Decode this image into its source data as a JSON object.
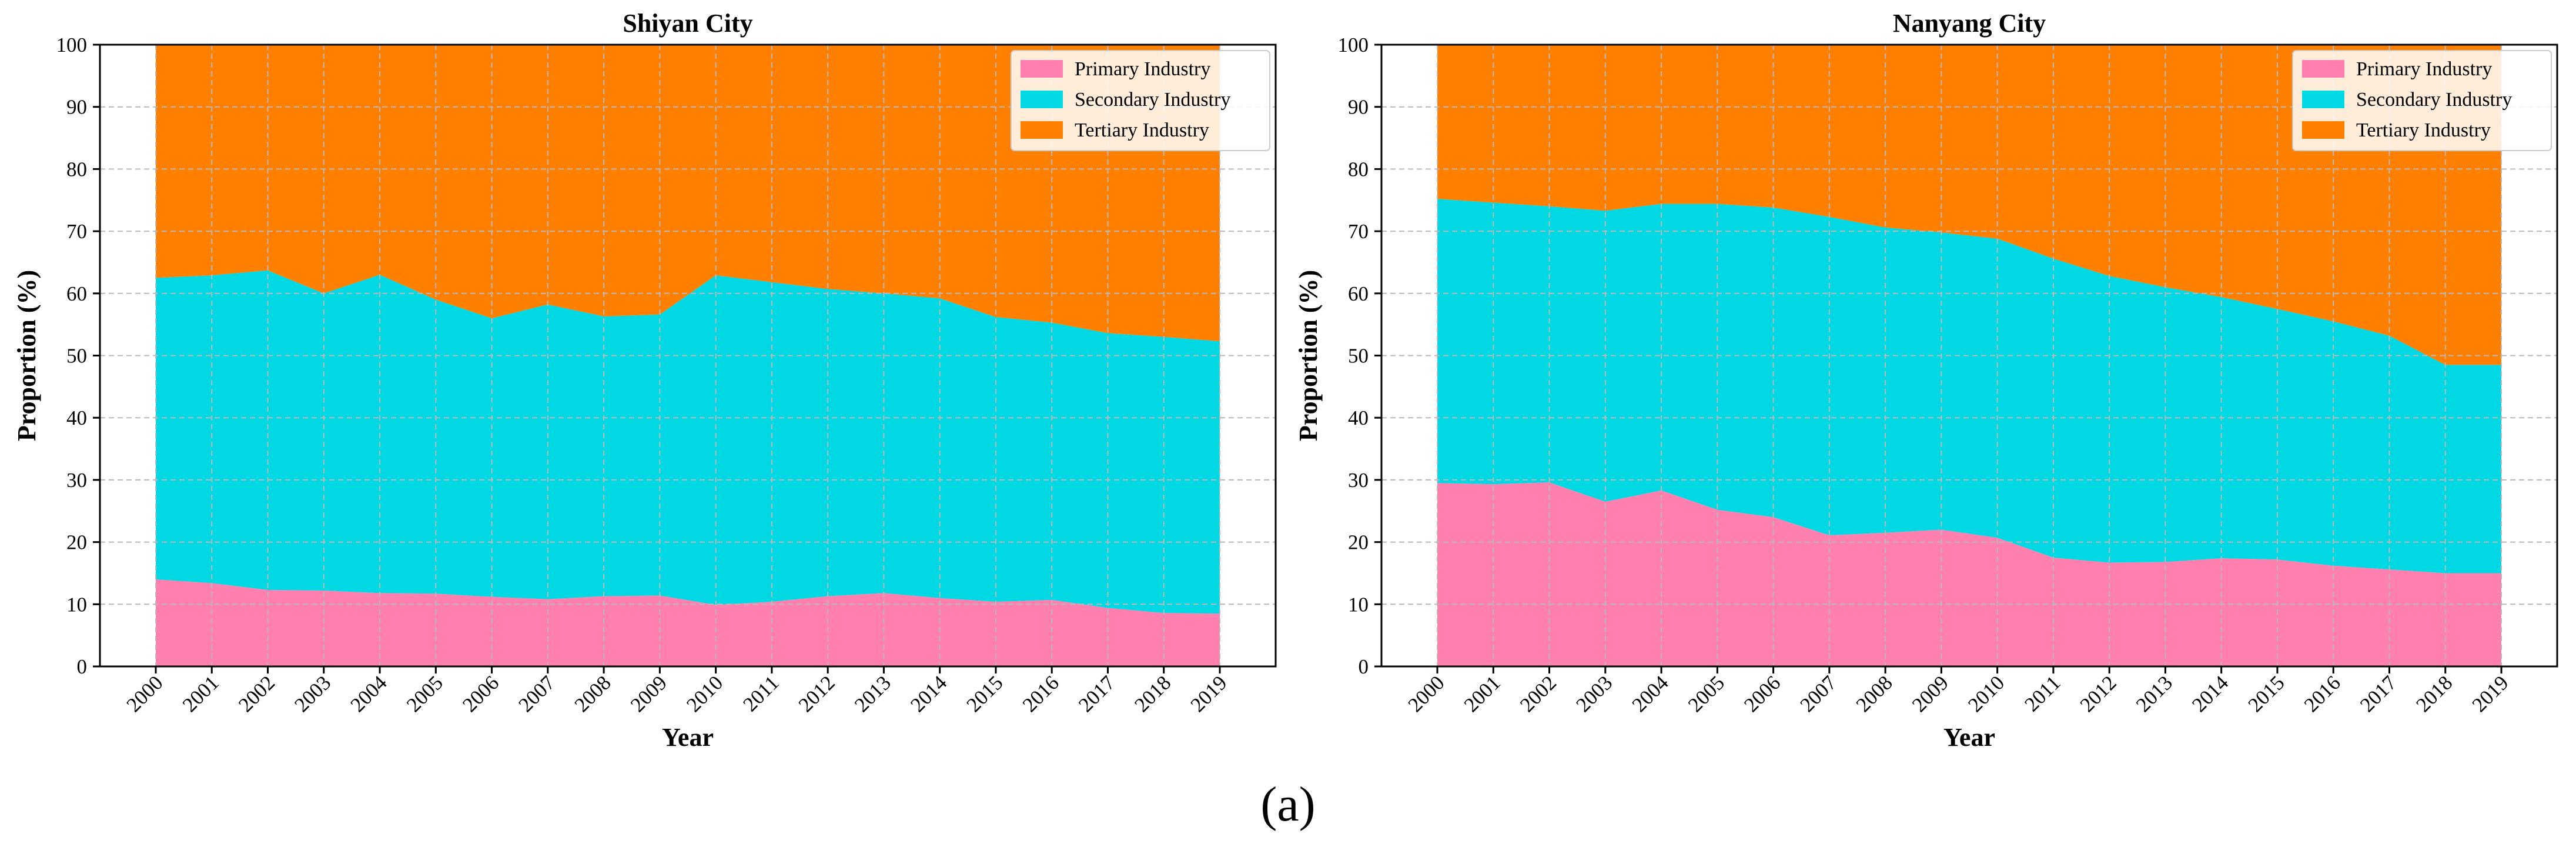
{
  "figure_label": "(a)",
  "colors": {
    "primary": "#FF7FAE",
    "secondary": "#00D8E4",
    "tertiary": "#FF7F00",
    "grid": "#b9b9b9",
    "axis": "#000000"
  },
  "chart_data": [
    {
      "type": "area",
      "stacked": true,
      "title": "Shiyan City",
      "xlabel": "Year",
      "ylabel": "Proportion (%)",
      "ylim": [
        0,
        100
      ],
      "yticks": [
        "0",
        "10",
        "20",
        "30",
        "40",
        "50",
        "60",
        "70",
        "80",
        "90",
        "100"
      ],
      "legend_position": "top-right",
      "grid": true,
      "x": [
        "2000",
        "2001",
        "2002",
        "2003",
        "2004",
        "2005",
        "2006",
        "2007",
        "2008",
        "2009",
        "2010",
        "2011",
        "2012",
        "2013",
        "2014",
        "2015",
        "2016",
        "2017",
        "2018",
        "2019"
      ],
      "series": [
        {
          "name": "Primary Industry",
          "color_key": "primary",
          "values": [
            14.0,
            13.4,
            12.3,
            12.2,
            11.8,
            11.7,
            11.2,
            10.8,
            11.3,
            11.4,
            9.9,
            10.4,
            11.3,
            11.8,
            11.0,
            10.4,
            10.7,
            9.4,
            8.6,
            8.5
          ]
        },
        {
          "name": "Secondary Industry",
          "color_key": "secondary",
          "values": [
            48.5,
            49.5,
            51.4,
            47.8,
            51.2,
            47.3,
            44.8,
            47.4,
            45.0,
            45.2,
            53.0,
            51.4,
            49.4,
            48.2,
            48.2,
            45.8,
            44.6,
            44.2,
            44.4,
            43.8
          ]
        },
        {
          "name": "Tertiary Industry",
          "color_key": "tertiary",
          "values": [
            37.5,
            37.1,
            36.3,
            40.0,
            37.0,
            41.0,
            44.0,
            41.8,
            43.7,
            43.4,
            37.1,
            38.2,
            39.3,
            40.0,
            40.8,
            43.8,
            44.7,
            46.4,
            47.0,
            47.7
          ]
        }
      ]
    },
    {
      "type": "area",
      "stacked": true,
      "title": "Nanyang City",
      "xlabel": "Year",
      "ylabel": "Proportion (%)",
      "ylim": [
        0,
        100
      ],
      "yticks": [
        "0",
        "10",
        "20",
        "30",
        "40",
        "50",
        "60",
        "70",
        "80",
        "90",
        "100"
      ],
      "legend_position": "top-right",
      "grid": true,
      "x": [
        "2000",
        "2001",
        "2002",
        "2003",
        "2004",
        "2005",
        "2006",
        "2007",
        "2008",
        "2009",
        "2010",
        "2011",
        "2012",
        "2013",
        "2014",
        "2015",
        "2016",
        "2017",
        "2018",
        "2019"
      ],
      "series": [
        {
          "name": "Primary Industry",
          "color_key": "primary",
          "values": [
            29.5,
            29.3,
            29.6,
            26.5,
            28.3,
            25.2,
            24.0,
            21.1,
            21.5,
            22.0,
            20.7,
            17.5,
            16.7,
            16.8,
            17.4,
            17.2,
            16.2,
            15.6,
            15.0,
            15.0
          ]
        },
        {
          "name": "Secondary Industry",
          "color_key": "secondary",
          "values": [
            45.7,
            45.3,
            44.4,
            46.8,
            46.1,
            49.2,
            49.8,
            51.2,
            49.1,
            47.8,
            48.1,
            48.1,
            46.1,
            44.2,
            42.0,
            40.3,
            39.3,
            37.6,
            33.5,
            33.5
          ]
        },
        {
          "name": "Tertiary Industry",
          "color_key": "tertiary",
          "values": [
            24.8,
            25.4,
            26.0,
            26.7,
            25.6,
            25.6,
            26.2,
            27.7,
            29.4,
            30.2,
            31.2,
            34.4,
            37.2,
            39.0,
            40.6,
            42.5,
            44.5,
            46.8,
            51.5,
            51.5
          ]
        }
      ]
    }
  ]
}
